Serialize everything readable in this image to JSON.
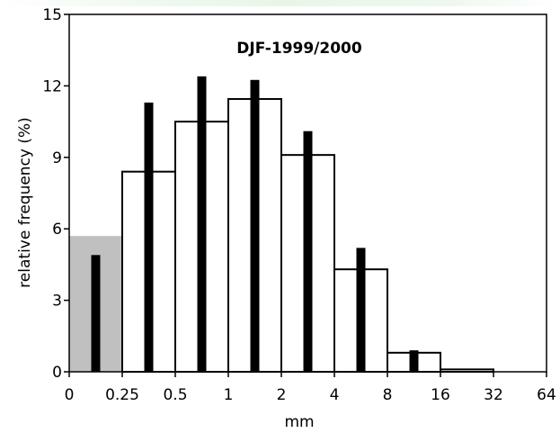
{
  "chart_data": {
    "type": "bar",
    "title": "DJF-1999/2000",
    "xlabel": "mm",
    "ylabel": "relative frequency (%)",
    "ylim": [
      0,
      15
    ],
    "yticks": [
      "0",
      "3",
      "6",
      "9",
      "12",
      "15"
    ],
    "x_tick_labels": [
      "0",
      "0.25",
      "0.5",
      "1",
      "2",
      "4",
      "8",
      "16",
      "32",
      "64"
    ],
    "bins": [
      {
        "from": "0",
        "to": "0.25",
        "outline_bar": 5.7,
        "dark_bar": 4.9,
        "outline_shaded": true
      },
      {
        "from": "0.25",
        "to": "0.5",
        "outline_bar": 8.4,
        "dark_bar": 11.3
      },
      {
        "from": "0.5",
        "to": "1",
        "outline_bar": 10.5,
        "dark_bar": 12.4
      },
      {
        "from": "1",
        "to": "2",
        "outline_bar": 11.45,
        "dark_bar": 12.25
      },
      {
        "from": "2",
        "to": "4",
        "outline_bar": 9.1,
        "dark_bar": 10.1
      },
      {
        "from": "4",
        "to": "8",
        "outline_bar": 4.3,
        "dark_bar": 5.2
      },
      {
        "from": "8",
        "to": "16",
        "outline_bar": 0.8,
        "dark_bar": 0.9
      },
      {
        "from": "16",
        "to": "32",
        "outline_bar": 0.1,
        "dark_bar": 0
      },
      {
        "from": "32",
        "to": "64",
        "outline_bar": 0,
        "dark_bar": 0
      }
    ],
    "colors": {
      "outline_fill": "#ffffff",
      "shaded_fill": "#c0c0c0",
      "dark_bar": "#000000"
    },
    "grid": false,
    "legend": "none"
  }
}
